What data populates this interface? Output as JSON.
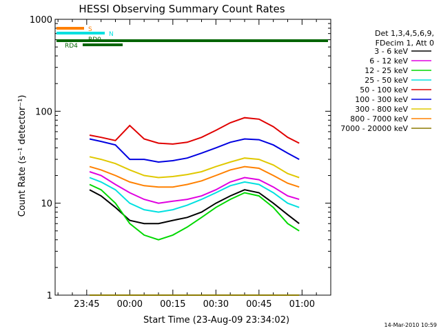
{
  "chart_data": {
    "type": "line",
    "title": "HESSI Observing Summary Count Rates",
    "xlabel": "Start Time (23-Aug-09 23:34:02)",
    "ylabel": "Count Rate (s⁻¹ detector⁻¹)",
    "yscale": "log",
    "ylim": [
      1,
      1000
    ],
    "xlim": [
      "23:34",
      "01:10"
    ],
    "x_ticks": [
      "23:45",
      "00:00",
      "00:15",
      "00:30",
      "00:45",
      "01:00"
    ],
    "y_ticks": [
      "1",
      "10",
      "100",
      "1000"
    ],
    "grid": false,
    "legend_position": "right",
    "legend_header": [
      "Det 1,3,4,5,6,9,",
      "FDecim 1, Att 0"
    ],
    "x": [
      "23:46",
      "23:50",
      "23:55",
      "00:00",
      "00:05",
      "00:10",
      "00:15",
      "00:20",
      "00:25",
      "00:30",
      "00:35",
      "00:40",
      "00:45",
      "00:50",
      "00:55",
      "00:59"
    ],
    "series": [
      {
        "name": "3 - 6 keV",
        "color": "#000000",
        "values": [
          14,
          12,
          9,
          6.5,
          6,
          6,
          6.5,
          7,
          8,
          10,
          12,
          14,
          13,
          10,
          7.5,
          6
        ]
      },
      {
        "name": "6 - 12 keV",
        "color": "#e000e0",
        "values": [
          22,
          20,
          16,
          13,
          11,
          10,
          10.5,
          11,
          12,
          14,
          17,
          19,
          18,
          15,
          12,
          11
        ]
      },
      {
        "name": "12 - 25 keV",
        "color": "#00d800",
        "values": [
          16,
          14,
          10,
          6,
          4.5,
          4,
          4.5,
          5.5,
          7,
          9,
          11,
          13,
          12,
          9,
          6,
          5
        ]
      },
      {
        "name": "25 - 50 keV",
        "color": "#00e0e0",
        "values": [
          19,
          17,
          14,
          10,
          8.5,
          8,
          8.5,
          9.5,
          11,
          13,
          15.5,
          17,
          16,
          13,
          10,
          9
        ]
      },
      {
        "name": "50 - 100 keV",
        "color": "#e00000",
        "values": [
          55,
          52,
          48,
          70,
          50,
          45,
          44,
          46,
          52,
          62,
          75,
          85,
          82,
          68,
          52,
          45
        ]
      },
      {
        "name": "100 - 300 keV",
        "color": "#0000e0",
        "values": [
          50,
          47,
          43,
          30,
          30,
          28,
          29,
          31,
          35,
          40,
          46,
          50,
          49,
          43,
          35,
          30
        ]
      },
      {
        "name": "300 - 800 keV",
        "color": "#e0c800",
        "values": [
          32,
          30,
          27,
          23,
          20,
          19,
          19.5,
          20.5,
          22,
          25,
          28,
          31,
          30,
          26,
          21,
          19
        ]
      },
      {
        "name": "800 - 7000 keV",
        "color": "#ff8000",
        "values": [
          25,
          23,
          20,
          17,
          15.5,
          15,
          15,
          16,
          17.5,
          20,
          23,
          25,
          24,
          20,
          16.5,
          15
        ]
      },
      {
        "name": "7000 - 20000 keV",
        "color": "#8b7a00",
        "values": [
          1,
          1,
          1,
          1,
          1,
          1,
          1,
          1,
          1,
          1,
          1,
          1,
          1,
          1,
          1,
          1
        ]
      }
    ],
    "status_bars": [
      {
        "label": "S",
        "color": "#ff8000"
      },
      {
        "label": "N",
        "color": "#00e0e0"
      },
      {
        "label": "RD0",
        "color": "#006400"
      },
      {
        "label": "RD4",
        "color": "#006400"
      }
    ]
  },
  "footer_stamp": "14-Mar-2010 10:59"
}
